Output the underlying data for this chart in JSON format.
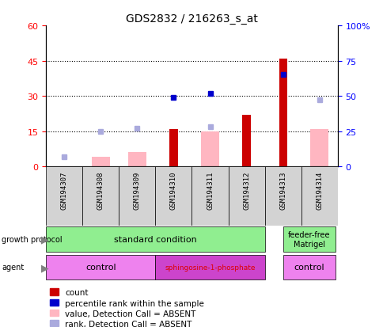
{
  "title": "GDS2832 / 216263_s_at",
  "samples": [
    "GSM194307",
    "GSM194308",
    "GSM194309",
    "GSM194310",
    "GSM194311",
    "GSM194312",
    "GSM194313",
    "GSM194314"
  ],
  "count": [
    null,
    null,
    null,
    16,
    null,
    22,
    46,
    null
  ],
  "percentile_rank": [
    null,
    null,
    null,
    49,
    52,
    null,
    65,
    null
  ],
  "value_absent": [
    null,
    4,
    6,
    null,
    15,
    null,
    null,
    16
  ],
  "rank_absent": [
    7,
    25,
    27,
    null,
    28,
    null,
    null,
    47
  ],
  "ylim_left": [
    0,
    60
  ],
  "ylim_right": [
    0,
    100
  ],
  "yticks_left": [
    0,
    15,
    30,
    45,
    60
  ],
  "yticks_left_labels": [
    "0",
    "15",
    "30",
    "45",
    "60"
  ],
  "yticks_right": [
    0,
    25,
    50,
    75,
    100
  ],
  "yticks_right_labels": [
    "0",
    "25",
    "50",
    "75",
    "100%"
  ],
  "color_count": "#CC0000",
  "color_percentile": "#0000CC",
  "color_value_absent": "#FFB6C1",
  "color_rank_absent": "#AAAADD",
  "color_gp_std": "#90EE90",
  "color_gp_ff": "#90EE90",
  "color_agent_ctrl": "#EE82EE",
  "color_agent_sph": "#CC44CC",
  "legend_items": [
    {
      "label": "count",
      "color": "#CC0000"
    },
    {
      "label": "percentile rank within the sample",
      "color": "#0000CC"
    },
    {
      "label": "value, Detection Call = ABSENT",
      "color": "#FFB6C1"
    },
    {
      "label": "rank, Detection Call = ABSENT",
      "color": "#AAAADD"
    }
  ]
}
